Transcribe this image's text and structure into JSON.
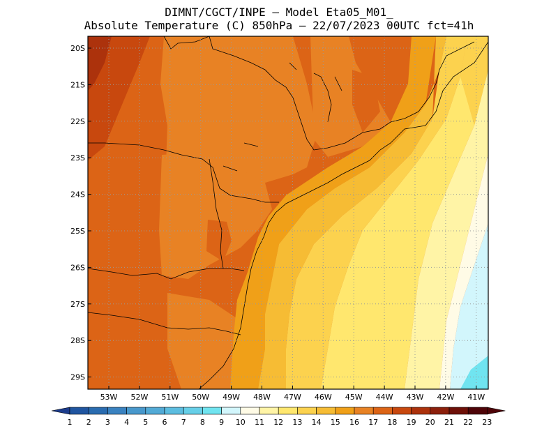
{
  "title_line1": "DIMNT/CGCT/INPE –  Model Eta05_M01_",
  "title_line2": "Absolute Temperature (C) 850hPa –  22/07/2023 00UTC fct=41h",
  "lat_labels": [
    "20S",
    "21S",
    "22S",
    "23S",
    "24S",
    "25S",
    "26S",
    "27S",
    "28S",
    "29S"
  ],
  "lon_labels": [
    "53W",
    "52W",
    "51W",
    "50W",
    "49W",
    "48W",
    "47W",
    "46W",
    "45W",
    "44W",
    "43W",
    "42W",
    "41W"
  ],
  "colorbar": {
    "labels": [
      "1",
      "2",
      "3",
      "4",
      "5",
      "6",
      "7",
      "8",
      "9",
      "10",
      "11",
      "12",
      "13",
      "14",
      "15",
      "16",
      "17",
      "18",
      "19",
      "20",
      "21",
      "22",
      "23"
    ],
    "colors": [
      "#1c3c8c",
      "#2055a0",
      "#2a6cb0",
      "#3a82c0",
      "#4898cc",
      "#52aad6",
      "#5cbde0",
      "#66cfe8",
      "#70e4f0",
      "#d2f6fc",
      "#fffbe6",
      "#fff4a6",
      "#ffe76e",
      "#fcd24e",
      "#f6bc34",
      "#f0a018",
      "#e88224",
      "#dc6416",
      "#c8480e",
      "#ac320c",
      "#8c200c",
      "#6e1008",
      "#4e0408"
    ]
  },
  "legend_range": "1–23 °C",
  "colors": {
    "frame": "#000000",
    "grid": "#9a9a9a",
    "coast": "#000000"
  }
}
